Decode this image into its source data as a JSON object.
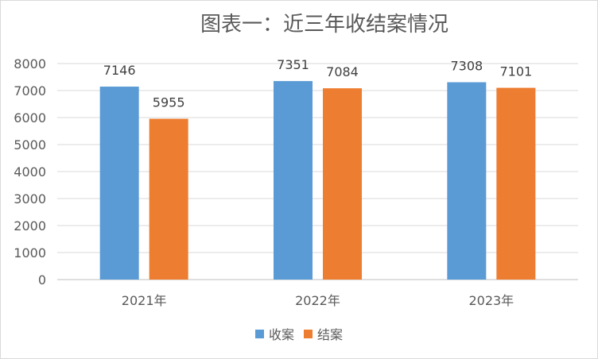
{
  "chart_data": {
    "type": "bar",
    "title": "图表一：近三年收结案情况",
    "categories": [
      "2021年",
      "2022年",
      "2023年"
    ],
    "series": [
      {
        "name": "收案",
        "values": [
          7146,
          7351,
          7308
        ],
        "color": "#5b9bd5"
      },
      {
        "name": "结案",
        "values": [
          5955,
          7084,
          7101
        ],
        "color": "#ed7d31"
      }
    ],
    "ylim": [
      0,
      8000
    ],
    "yticks": [
      0,
      1000,
      2000,
      3000,
      4000,
      5000,
      6000,
      7000,
      8000
    ],
    "grid": true,
    "legend": "bottom",
    "data_labels": true
  }
}
